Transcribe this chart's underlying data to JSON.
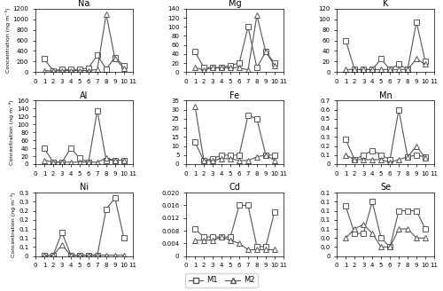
{
  "x": [
    1,
    2,
    3,
    4,
    5,
    6,
    7,
    8,
    9,
    10
  ],
  "Na": {
    "M1": [
      250,
      30,
      50,
      50,
      50,
      80,
      320,
      60,
      280,
      120
    ],
    "M2": [
      30,
      20,
      30,
      30,
      30,
      30,
      50,
      1100,
      250,
      80
    ]
  },
  "Mg": {
    "M1": [
      45,
      10,
      10,
      10,
      15,
      20,
      100,
      10,
      45,
      20
    ],
    "M2": [
      10,
      5,
      10,
      10,
      10,
      10,
      5,
      125,
      45,
      15
    ]
  },
  "K": {
    "M1": [
      60,
      5,
      5,
      5,
      25,
      5,
      15,
      5,
      95,
      20
    ],
    "M2": [
      5,
      5,
      5,
      5,
      5,
      5,
      5,
      5,
      25,
      15
    ]
  },
  "Al": {
    "M1": [
      40,
      5,
      5,
      40,
      15,
      5,
      135,
      10,
      10,
      10
    ],
    "M2": [
      10,
      5,
      5,
      5,
      5,
      5,
      5,
      15,
      10,
      10
    ]
  },
  "Fe": {
    "M1": [
      12,
      2,
      3,
      5,
      5,
      5,
      27,
      25,
      5,
      5
    ],
    "M2": [
      32,
      2,
      2,
      3,
      3,
      2,
      2,
      4,
      5,
      2
    ]
  },
  "Mn": {
    "M1": [
      0.27,
      0.05,
      0.1,
      0.15,
      0.1,
      0.05,
      0.6,
      0.08,
      0.1,
      0.08
    ],
    "M2": [
      0.1,
      0.05,
      0.05,
      0.05,
      0.05,
      0.02,
      0.05,
      0.08,
      0.2,
      0.07
    ]
  },
  "Ni": {
    "M1": [
      0.005,
      0.005,
      0.13,
      0.005,
      0.005,
      0.005,
      0.005,
      0.26,
      0.32,
      0.1
    ],
    "M2": [
      0.005,
      0.005,
      0.06,
      0.005,
      0.005,
      0.005,
      0.005,
      0.005,
      0.005,
      0.005
    ]
  },
  "Cd": {
    "M1": [
      0.0085,
      0.006,
      0.006,
      0.006,
      0.006,
      0.016,
      0.016,
      0.003,
      0.003,
      0.014
    ],
    "M2": [
      0.005,
      0.005,
      0.005,
      0.006,
      0.005,
      0.004,
      0.002,
      0.002,
      0.002,
      0.002
    ]
  },
  "Se": {
    "M1": [
      0.11,
      0.05,
      0.05,
      0.12,
      0.04,
      0.02,
      0.1,
      0.1,
      0.1,
      0.06
    ],
    "M2": [
      0.04,
      0.06,
      0.07,
      0.05,
      0.02,
      0.02,
      0.06,
      0.06,
      0.04,
      0.04
    ]
  },
  "ylims": {
    "Na": [
      0,
      1200
    ],
    "Mg": [
      0,
      140
    ],
    "K": [
      0,
      120
    ],
    "Al": [
      0,
      160
    ],
    "Fe": [
      0,
      35
    ],
    "Mn": [
      0,
      0.7
    ],
    "Ni": [
      0,
      0.35
    ],
    "Cd": [
      0,
      0.02
    ],
    "Se": [
      0,
      0.14
    ]
  },
  "yticks": {
    "Na": [
      0,
      200,
      400,
      600,
      800,
      1000,
      1200
    ],
    "Mg": [
      0,
      20,
      40,
      60,
      80,
      100,
      120,
      140
    ],
    "K": [
      0,
      20,
      40,
      60,
      80,
      100,
      120
    ],
    "Al": [
      0,
      20,
      40,
      60,
      80,
      100,
      120,
      140,
      160
    ],
    "Fe": [
      0,
      5,
      10,
      15,
      20,
      25,
      30,
      35
    ],
    "Mn": [
      0,
      0.1,
      0.2,
      0.3,
      0.4,
      0.5,
      0.6,
      0.7
    ],
    "Ni": [
      0,
      0.05,
      0.1,
      0.15,
      0.2,
      0.25,
      0.3,
      0.35
    ],
    "Cd": [
      0,
      0.004,
      0.008,
      0.012,
      0.016,
      0.02
    ],
    "Se": [
      0,
      0.02,
      0.04,
      0.06,
      0.08,
      0.1,
      0.12,
      0.14
    ]
  },
  "elements": [
    "Na",
    "Mg",
    "K",
    "Al",
    "Fe",
    "Mn",
    "Ni",
    "Cd",
    "Se"
  ],
  "ylabel": "Concentration (ng m⁻³)",
  "line_color": "#555555",
  "marker_M1": "s",
  "marker_M2": "^",
  "markersize": 4,
  "linewidth": 0.8
}
